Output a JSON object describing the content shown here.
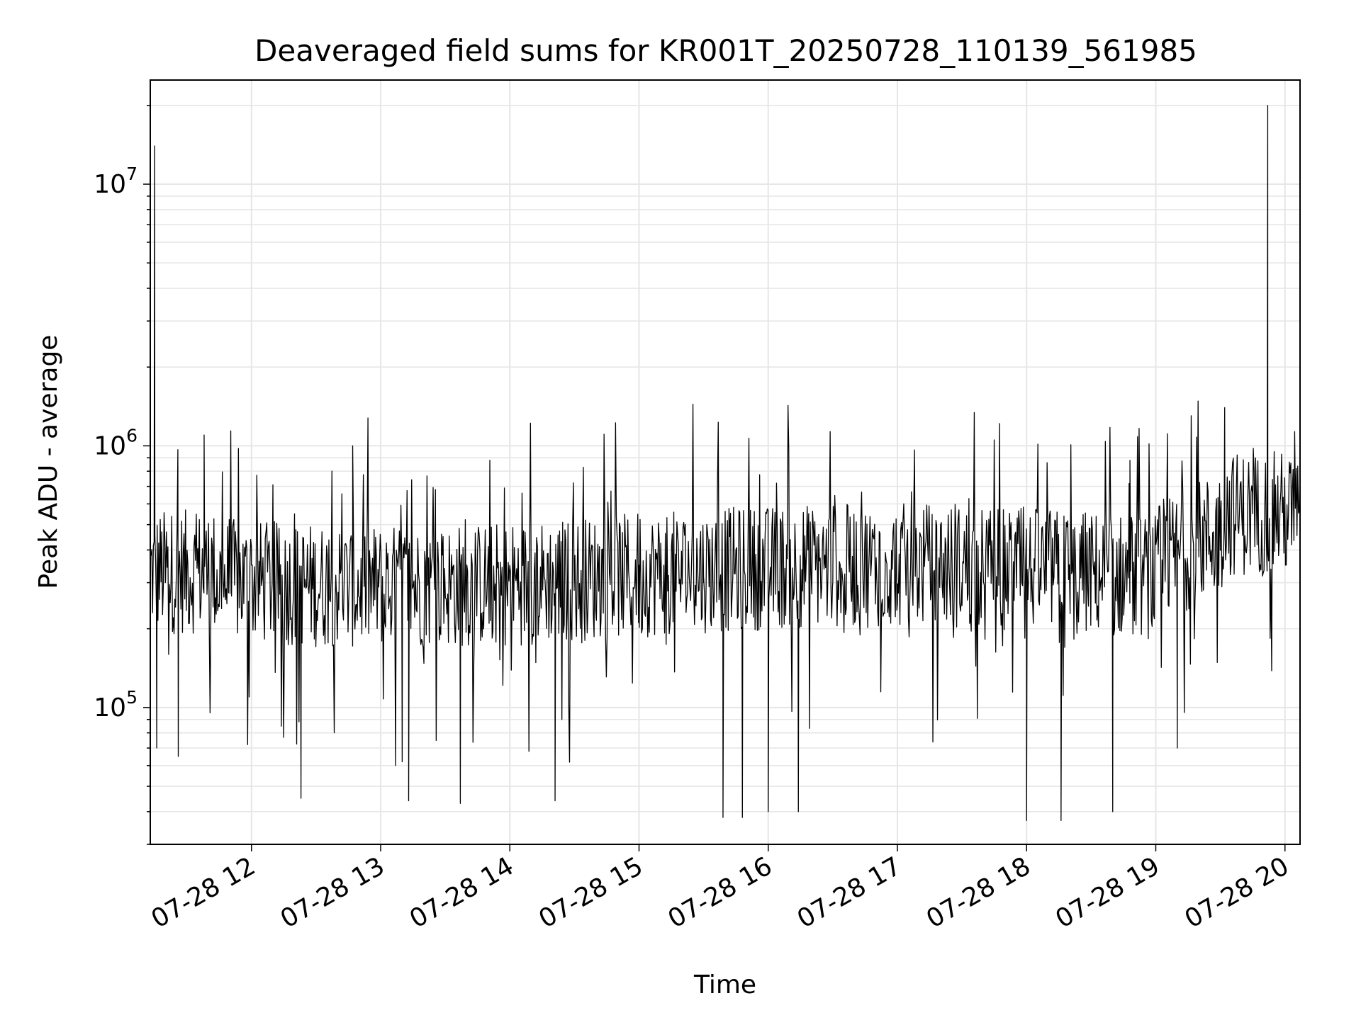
{
  "chart_data": {
    "type": "line",
    "title": "Deaveraged field sums for KR001T_20250728_110139_561985",
    "xlabel": "Time",
    "ylabel": "Peak ADU - average",
    "y_scale": "log",
    "grid": "on",
    "legend": "none",
    "line_color": "#000000",
    "grid_color": "#e6e6e6",
    "xlim": [
      "2025-07-28 11:13",
      "2025-07-28 20:07"
    ],
    "ylim": [
      30000,
      25000000
    ],
    "x_ticks": [
      "07-28 12",
      "07-28 13",
      "07-28 14",
      "07-28 15",
      "07-28 16",
      "07-28 17",
      "07-28 18",
      "07-28 19",
      "07-28 20"
    ],
    "y_ticks": [
      {
        "base": "10",
        "exp": "5"
      },
      {
        "base": "10",
        "exp": "6"
      },
      {
        "base": "10",
        "exp": "7"
      }
    ],
    "series": [
      {
        "points": [
          [
            "2025-07-28 11:13",
            400000
          ],
          [
            "2025-07-28 11:15",
            14000000
          ],
          [
            "2025-07-28 11:16",
            70000
          ],
          [
            "2025-07-28 11:20",
            300000
          ],
          [
            "2025-07-28 11:26",
            65000
          ],
          [
            "2025-07-28 11:38",
            1100000
          ],
          [
            "2025-07-28 12:00",
            350000
          ],
          [
            "2025-07-28 12:20",
            550000
          ],
          [
            "2025-07-28 12:23",
            45000
          ],
          [
            "2025-07-28 12:47",
            1000000
          ],
          [
            "2025-07-28 13:10",
            62000
          ],
          [
            "2025-07-28 13:13",
            44000
          ],
          [
            "2025-07-28 13:37",
            43000
          ],
          [
            "2025-07-28 13:45",
            400000
          ],
          [
            "2025-07-28 14:21",
            44000
          ],
          [
            "2025-07-28 15:00",
            350000
          ],
          [
            "2025-07-28 15:30",
            300000
          ],
          [
            "2025-07-28 15:39",
            38000
          ],
          [
            "2025-07-28 15:48",
            38000
          ],
          [
            "2025-07-28 16:00",
            40000
          ],
          [
            "2025-07-28 16:14",
            40000
          ],
          [
            "2025-07-28 16:30",
            300000
          ],
          [
            "2025-07-28 17:00",
            250000
          ],
          [
            "2025-07-28 17:30",
            300000
          ],
          [
            "2025-07-28 18:00",
            37000
          ],
          [
            "2025-07-28 18:16",
            37000
          ],
          [
            "2025-07-28 18:40",
            40000
          ],
          [
            "2025-07-28 18:48",
            880000
          ],
          [
            "2025-07-28 19:10",
            70000
          ],
          [
            "2025-07-28 19:30",
            500000
          ],
          [
            "2025-07-28 19:32",
            1400000
          ],
          [
            "2025-07-28 19:45",
            550000
          ],
          [
            "2025-07-28 19:52",
            20000000
          ],
          [
            "2025-07-28 19:55",
            950000
          ],
          [
            "2025-07-28 20:07",
            700000
          ]
        ]
      }
    ]
  }
}
